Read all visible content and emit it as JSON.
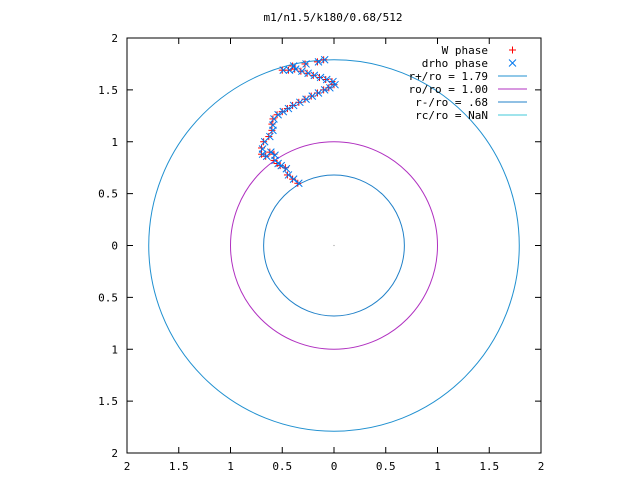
{
  "chart_data": {
    "type": "scatter",
    "title": "m1/n1.5/k180/0.68/512",
    "xlabel": "",
    "ylabel": "",
    "xlim": [
      -2,
      2
    ],
    "ylim": [
      -2,
      2
    ],
    "grid": false,
    "legend_position": "top-right",
    "x_ticks": [
      {
        "value": -2,
        "label": "2"
      },
      {
        "value": -1.5,
        "label": "1.5"
      },
      {
        "value": -1,
        "label": "1"
      },
      {
        "value": -0.5,
        "label": "0.5"
      },
      {
        "value": 0,
        "label": "0"
      },
      {
        "value": 0.5,
        "label": "0.5"
      },
      {
        "value": 1,
        "label": "1"
      },
      {
        "value": 1.5,
        "label": "1.5"
      },
      {
        "value": 2,
        "label": "2"
      }
    ],
    "y_ticks": [
      {
        "value": 2,
        "label": "2"
      },
      {
        "value": 1.5,
        "label": "1.5"
      },
      {
        "value": 1,
        "label": "1"
      },
      {
        "value": 0.5,
        "label": "0.5"
      },
      {
        "value": 0,
        "label": "0"
      },
      {
        "value": -0.5,
        "label": "0.5"
      },
      {
        "value": -1,
        "label": "1"
      },
      {
        "value": -1.5,
        "label": "1.5"
      },
      {
        "value": -2,
        "label": "2"
      }
    ],
    "series": [
      {
        "name": "W phase",
        "marker": "plus",
        "color": "#ff0000",
        "points": [
          [
            -0.35,
            0.6
          ],
          [
            -0.4,
            0.64
          ],
          [
            -0.45,
            0.68
          ],
          [
            -0.47,
            0.75
          ],
          [
            -0.52,
            0.77
          ],
          [
            -0.55,
            0.79
          ],
          [
            -0.58,
            0.82
          ],
          [
            -0.58,
            0.88
          ],
          [
            -0.62,
            0.9
          ],
          [
            -0.66,
            0.86
          ],
          [
            -0.7,
            0.88
          ],
          [
            -0.7,
            0.94
          ],
          [
            -0.68,
            1.0
          ],
          [
            -0.63,
            1.05
          ],
          [
            -0.6,
            1.11
          ],
          [
            -0.6,
            1.17
          ],
          [
            -0.59,
            1.22
          ],
          [
            -0.55,
            1.26
          ],
          [
            -0.5,
            1.29
          ],
          [
            -0.45,
            1.32
          ],
          [
            -0.4,
            1.35
          ],
          [
            -0.34,
            1.38
          ],
          [
            -0.28,
            1.41
          ],
          [
            -0.22,
            1.44
          ],
          [
            -0.16,
            1.47
          ],
          [
            -0.1,
            1.5
          ],
          [
            -0.05,
            1.52
          ],
          [
            0.0,
            1.55
          ],
          [
            -0.02,
            1.58
          ],
          [
            -0.08,
            1.6
          ],
          [
            -0.14,
            1.62
          ],
          [
            -0.2,
            1.64
          ],
          [
            -0.26,
            1.66
          ],
          [
            -0.32,
            1.68
          ],
          [
            -0.38,
            1.7
          ],
          [
            -0.44,
            1.69
          ],
          [
            -0.5,
            1.69
          ],
          [
            -0.4,
            1.73
          ],
          [
            -0.28,
            1.75
          ],
          [
            -0.16,
            1.77
          ],
          [
            -0.1,
            1.79
          ]
        ]
      },
      {
        "name": "drho phase",
        "marker": "cross",
        "color": "#0077ee",
        "points": [
          [
            -0.34,
            0.6
          ],
          [
            -0.39,
            0.64
          ],
          [
            -0.44,
            0.68
          ],
          [
            -0.46,
            0.74
          ],
          [
            -0.51,
            0.77
          ],
          [
            -0.54,
            0.79
          ],
          [
            -0.57,
            0.82
          ],
          [
            -0.57,
            0.87
          ],
          [
            -0.61,
            0.9
          ],
          [
            -0.65,
            0.86
          ],
          [
            -0.69,
            0.88
          ],
          [
            -0.69,
            0.93
          ],
          [
            -0.67,
            1.0
          ],
          [
            -0.62,
            1.05
          ],
          [
            -0.59,
            1.11
          ],
          [
            -0.59,
            1.16
          ],
          [
            -0.58,
            1.22
          ],
          [
            -0.54,
            1.26
          ],
          [
            -0.49,
            1.29
          ],
          [
            -0.44,
            1.32
          ],
          [
            -0.39,
            1.35
          ],
          [
            -0.33,
            1.38
          ],
          [
            -0.27,
            1.41
          ],
          [
            -0.21,
            1.44
          ],
          [
            -0.15,
            1.47
          ],
          [
            -0.09,
            1.5
          ],
          [
            -0.04,
            1.52
          ],
          [
            0.01,
            1.55
          ],
          [
            -0.01,
            1.58
          ],
          [
            -0.07,
            1.6
          ],
          [
            -0.13,
            1.62
          ],
          [
            -0.19,
            1.64
          ],
          [
            -0.25,
            1.66
          ],
          [
            -0.31,
            1.68
          ],
          [
            -0.37,
            1.7
          ],
          [
            -0.43,
            1.69
          ],
          [
            -0.49,
            1.69
          ],
          [
            -0.39,
            1.73
          ],
          [
            -0.27,
            1.75
          ],
          [
            -0.15,
            1.77
          ],
          [
            -0.09,
            1.79
          ]
        ]
      }
    ],
    "circles": [
      {
        "name": "r+/ro = 1.79",
        "radius": 1.79,
        "color": "#2090d0"
      },
      {
        "name": "ro/ro = 1.00",
        "radius": 1.0,
        "color": "#b030c0"
      },
      {
        "name": "r-/ro = .68",
        "radius": 0.68,
        "color": "#2080c8"
      },
      {
        "name": "rc/ro = NaN",
        "radius": null,
        "color": "#40c8d8"
      }
    ]
  }
}
